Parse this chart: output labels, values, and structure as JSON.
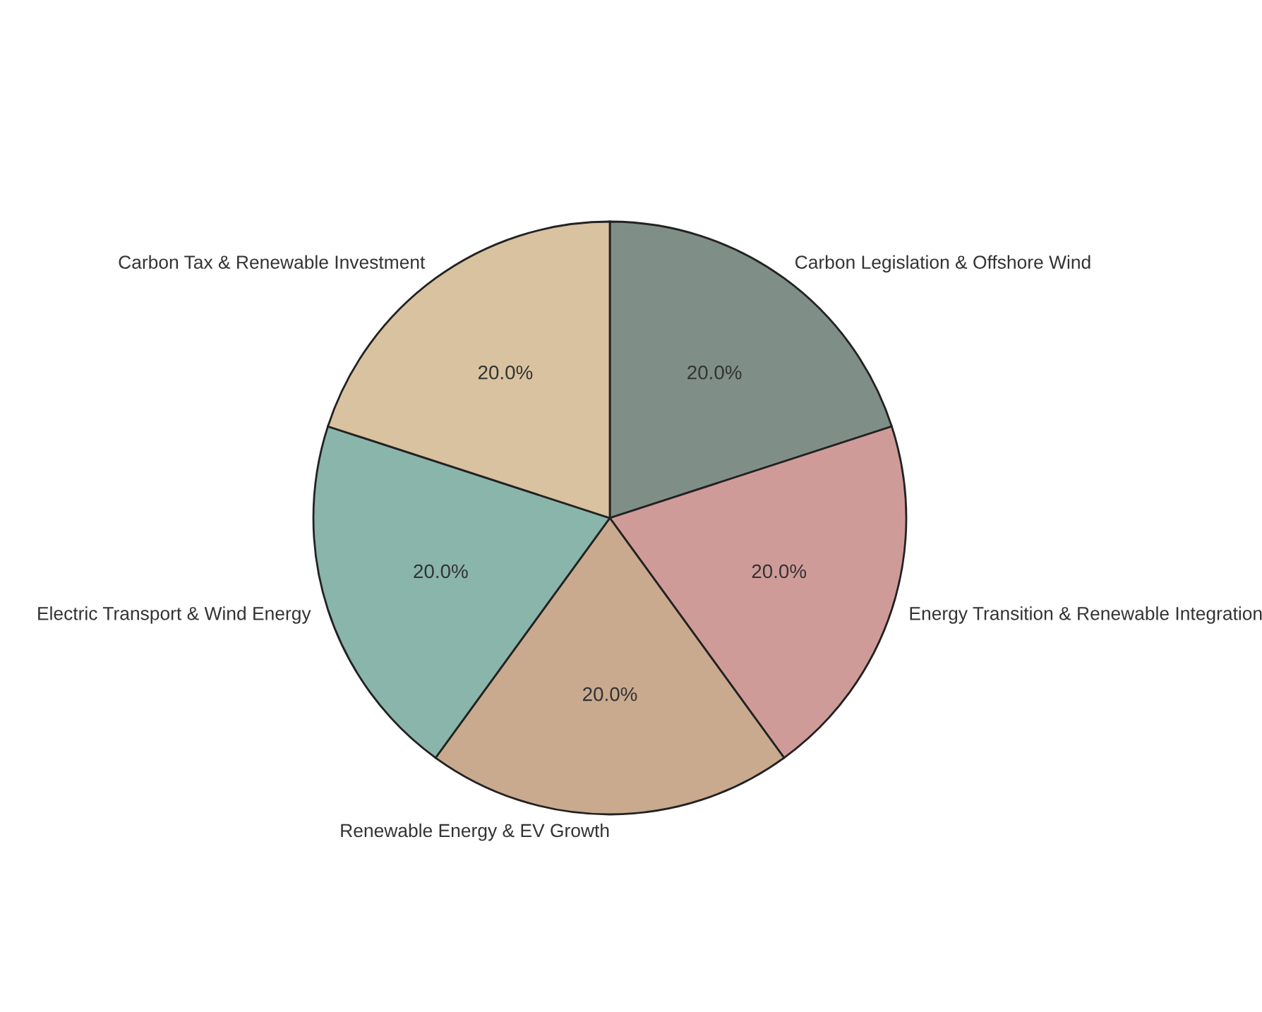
{
  "chart_data": {
    "type": "pie",
    "categories": [
      "Carbon Legislation & Offshore Wind",
      "Energy Transition & Renewable Integration",
      "Renewable Energy & EV Growth",
      "Electric Transport & Wind Energy",
      "Carbon Tax & Renewable Investment"
    ],
    "values": [
      20,
      20,
      20,
      20,
      20
    ],
    "value_labels": [
      "20.0%",
      "20.0%",
      "20.0%",
      "20.0%",
      "20.0%"
    ],
    "colors": [
      "#7f8f87",
      "#cf9b98",
      "#c9aa8f",
      "#8ab5aa",
      "#d9c29f"
    ],
    "legend": false
  }
}
